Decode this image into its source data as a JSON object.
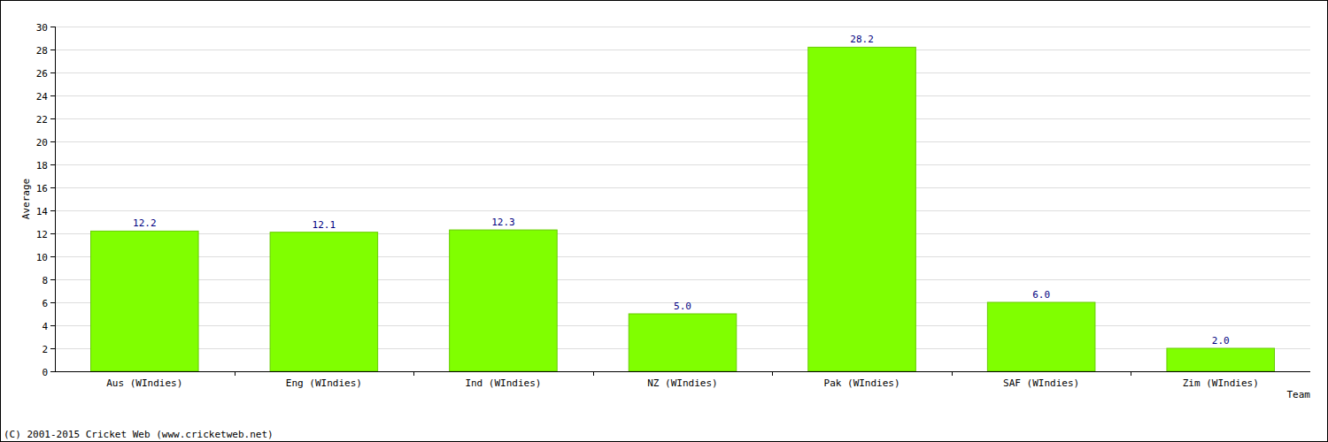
{
  "chart_data": {
    "type": "bar",
    "x_label": "Team",
    "y_label": "Average",
    "annotations": [
      "(C) 2001-2015 Cricket Web (www.cricketweb.net)"
    ],
    "categories": [
      "Aus (WIndies)",
      "Eng (WIndies)",
      "Ind (WIndies)",
      "NZ (WIndies)",
      "Pak (WIndies)",
      "SAF (WIndies)",
      "Zim (WIndies)"
    ],
    "values": [
      12.2,
      12.1,
      12.3,
      5.0,
      28.2,
      6.0,
      2.0
    ],
    "value_labels": [
      "12.2",
      "12.1",
      "12.3",
      "5.0",
      "28.2",
      "6.0",
      "2.0"
    ],
    "color": "#80ff00",
    "ylim": [
      0,
      30
    ],
    "yticks": [
      0,
      2,
      4,
      6,
      8,
      10,
      12,
      14,
      16,
      18,
      20,
      22,
      24,
      26,
      28,
      30
    ],
    "grid": true,
    "data_labels": true
  }
}
